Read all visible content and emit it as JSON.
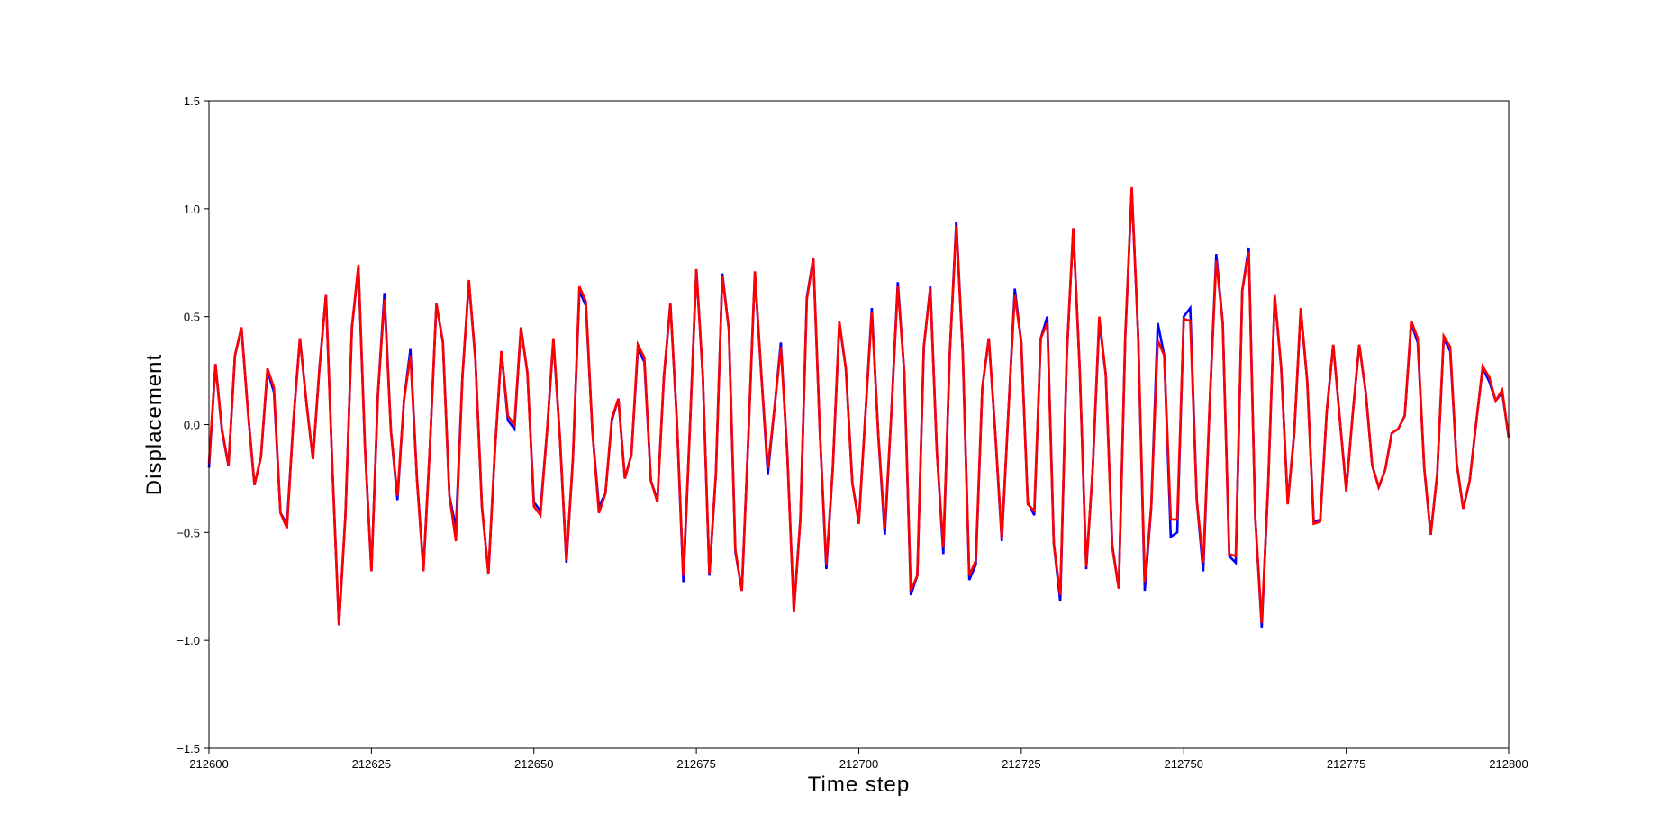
{
  "chart_data": {
    "type": "line",
    "xlabel": "Time step",
    "ylabel": "Displacement",
    "xlim": [
      212600,
      212800
    ],
    "ylim": [
      -1.5,
      1.5
    ],
    "x_ticks": [
      212600,
      212625,
      212650,
      212675,
      212700,
      212725,
      212750,
      212775,
      212800
    ],
    "x_tick_labels": [
      "212600",
      "212625",
      "212650",
      "212675",
      "212700",
      "212725",
      "212750",
      "212775",
      "212800"
    ],
    "y_ticks": [
      -1.5,
      -1.0,
      -0.5,
      0.0,
      0.5,
      1.0,
      1.5
    ],
    "y_tick_labels": [
      "−1.5",
      "−1.0",
      "−0.5",
      "0.0",
      "0.5",
      "1.0",
      "1.5"
    ],
    "grid": false,
    "legend": "none",
    "x_start": 212600,
    "x_step": 1,
    "series": [
      {
        "color": "#0000ff",
        "values": [
          -0.2,
          0.28,
          -0.03,
          -0.19,
          0.32,
          0.45,
          0.06,
          -0.28,
          -0.15,
          0.25,
          0.15,
          -0.41,
          -0.46,
          0.02,
          0.4,
          0.1,
          -0.16,
          0.26,
          0.6,
          -0.21,
          -0.93,
          -0.42,
          0.45,
          0.73,
          -0.1,
          -0.68,
          0.14,
          0.61,
          -0.03,
          -0.35,
          0.11,
          0.35,
          -0.25,
          -0.67,
          -0.1,
          0.56,
          0.38,
          -0.33,
          -0.48,
          0.22,
          0.66,
          0.3,
          -0.38,
          -0.69,
          -0.12,
          0.34,
          0.02,
          -0.02,
          0.45,
          0.24,
          -0.36,
          -0.4,
          -0.04,
          0.39,
          -0.06,
          -0.64,
          -0.16,
          0.62,
          0.55,
          -0.03,
          -0.38,
          -0.32,
          0.02,
          0.12,
          -0.25,
          -0.14,
          0.35,
          0.29,
          -0.26,
          -0.35,
          0.22,
          0.56,
          0.02,
          -0.73,
          -0.02,
          0.72,
          0.22,
          -0.7,
          -0.23,
          0.7,
          0.44,
          -0.59,
          -0.77,
          -0.06,
          0.7,
          0.23,
          -0.23,
          0.07,
          0.38,
          -0.14,
          -0.86,
          -0.44,
          0.59,
          0.77,
          -0.03,
          -0.67,
          -0.2,
          0.47,
          0.26,
          -0.27,
          -0.45,
          0.04,
          0.54,
          -0.05,
          -0.51,
          0.05,
          0.66,
          0.24,
          -0.79,
          -0.7,
          0.36,
          0.64,
          -0.12,
          -0.6,
          0.33,
          0.94,
          0.33,
          -0.72,
          -0.65,
          0.17,
          0.4,
          -0.04,
          -0.54,
          0.05,
          0.63,
          0.38,
          -0.36,
          -0.42,
          0.4,
          0.5,
          -0.55,
          -0.82,
          0.32,
          0.91,
          0.25,
          -0.67,
          -0.2,
          0.48,
          0.23,
          -0.56,
          -0.76,
          0.41,
          1.09,
          0.4,
          -0.77,
          -0.38,
          0.47,
          0.32,
          -0.52,
          -0.5,
          0.5,
          0.54,
          -0.35,
          -0.68,
          0.1,
          0.79,
          0.47,
          -0.61,
          -0.64,
          0.62,
          0.82,
          -0.43,
          -0.94,
          -0.27,
          0.59,
          0.26,
          -0.36,
          -0.04,
          0.53,
          0.2,
          -0.45,
          -0.44,
          0.06,
          0.37,
          0.03,
          -0.3,
          0.05,
          0.37,
          0.15,
          -0.19,
          -0.29,
          -0.21,
          -0.04,
          -0.02,
          0.04,
          0.47,
          0.38,
          -0.2,
          -0.51,
          -0.23,
          0.4,
          0.34,
          -0.18,
          -0.39,
          -0.26,
          0.01,
          0.26,
          0.2,
          0.11,
          0.15,
          -0.06
        ]
      },
      {
        "color": "#ff0000",
        "values": [
          -0.18,
          0.28,
          -0.02,
          -0.19,
          0.32,
          0.45,
          0.06,
          -0.28,
          -0.15,
          0.26,
          0.17,
          -0.41,
          -0.48,
          0.02,
          0.4,
          0.1,
          -0.16,
          0.26,
          0.6,
          -0.21,
          -0.93,
          -0.42,
          0.45,
          0.74,
          -0.1,
          -0.68,
          0.14,
          0.58,
          -0.03,
          -0.33,
          0.11,
          0.32,
          -0.25,
          -0.68,
          -0.1,
          0.56,
          0.38,
          -0.33,
          -0.54,
          0.22,
          0.67,
          0.3,
          -0.38,
          -0.69,
          -0.12,
          0.34,
          0.04,
          0.0,
          0.45,
          0.24,
          -0.38,
          -0.42,
          -0.04,
          0.4,
          -0.06,
          -0.63,
          -0.16,
          0.64,
          0.57,
          -0.03,
          -0.41,
          -0.32,
          0.03,
          0.12,
          -0.25,
          -0.14,
          0.37,
          0.31,
          -0.26,
          -0.36,
          0.22,
          0.56,
          0.02,
          -0.7,
          -0.02,
          0.72,
          0.22,
          -0.69,
          -0.23,
          0.69,
          0.44,
          -0.58,
          -0.77,
          -0.06,
          0.71,
          0.23,
          -0.2,
          0.07,
          0.36,
          -0.14,
          -0.87,
          -0.44,
          0.58,
          0.77,
          -0.03,
          -0.65,
          -0.2,
          0.48,
          0.26,
          -0.27,
          -0.46,
          0.04,
          0.52,
          -0.05,
          -0.48,
          0.05,
          0.64,
          0.24,
          -0.77,
          -0.7,
          0.36,
          0.63,
          -0.12,
          -0.57,
          0.33,
          0.92,
          0.33,
          -0.7,
          -0.63,
          0.17,
          0.4,
          -0.04,
          -0.53,
          0.05,
          0.6,
          0.38,
          -0.37,
          -0.4,
          0.4,
          0.47,
          -0.55,
          -0.79,
          0.32,
          0.91,
          0.25,
          -0.66,
          -0.2,
          0.5,
          0.23,
          -0.57,
          -0.76,
          0.41,
          1.1,
          0.4,
          -0.73,
          -0.38,
          0.39,
          0.32,
          -0.44,
          -0.44,
          0.49,
          0.48,
          -0.35,
          -0.64,
          0.1,
          0.76,
          0.47,
          -0.6,
          -0.61,
          0.62,
          0.8,
          -0.43,
          -0.92,
          -0.27,
          0.6,
          0.26,
          -0.37,
          -0.04,
          0.54,
          0.2,
          -0.46,
          -0.45,
          0.06,
          0.37,
          0.03,
          -0.31,
          0.05,
          0.37,
          0.15,
          -0.19,
          -0.29,
          -0.21,
          -0.04,
          -0.02,
          0.04,
          0.48,
          0.4,
          -0.2,
          -0.51,
          -0.23,
          0.41,
          0.36,
          -0.18,
          -0.39,
          -0.26,
          0.01,
          0.27,
          0.22,
          0.11,
          0.16,
          -0.06
        ]
      }
    ]
  }
}
